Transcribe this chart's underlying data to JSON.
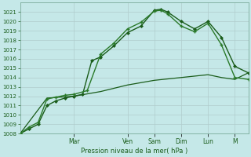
{
  "xlabel": "Pression niveau de la mer( hPa )",
  "bg_color": "#c5e8e8",
  "grid_color": "#b0cccc",
  "line_color_dark": "#1a5c1a",
  "line_color_mid": "#2a7a2a",
  "ylim": [
    1008,
    1022
  ],
  "ytick_min": 1008,
  "ytick_max": 1021,
  "day_labels": [
    "Mar",
    "Ven",
    "Sam",
    "Dim",
    "Lun",
    "M"
  ],
  "day_positions": [
    2.0,
    4.0,
    5.0,
    6.0,
    7.0,
    8.0
  ],
  "xlim": [
    0,
    8.5
  ],
  "line1_x": [
    0,
    0.33,
    0.67,
    1.0,
    1.33,
    1.67,
    2.0,
    2.33,
    2.67,
    3.0,
    3.5,
    4.0,
    4.5,
    5.0,
    5.25,
    5.5,
    6.0,
    6.5,
    7.0,
    7.5,
    8.0,
    8.5
  ],
  "line1_y": [
    1008.0,
    1008.5,
    1009.0,
    1011.0,
    1011.5,
    1011.8,
    1012.0,
    1012.2,
    1015.8,
    1016.2,
    1017.4,
    1018.8,
    1019.5,
    1021.2,
    1021.3,
    1021.0,
    1020.0,
    1019.2,
    1020.0,
    1018.3,
    1015.2,
    1014.5
  ],
  "line2_x": [
    0,
    0.33,
    0.67,
    1.0,
    1.33,
    1.67,
    2.0,
    2.5,
    3.0,
    3.5,
    4.0,
    4.5,
    5.0,
    5.25,
    5.5,
    6.0,
    6.5,
    7.0,
    7.5,
    8.0,
    8.5
  ],
  "line2_y": [
    1008.0,
    1008.7,
    1009.2,
    1011.7,
    1011.9,
    1012.1,
    1012.2,
    1012.6,
    1016.5,
    1017.7,
    1019.2,
    1019.9,
    1021.1,
    1021.2,
    1020.8,
    1019.5,
    1018.9,
    1019.8,
    1017.5,
    1014.0,
    1013.8
  ],
  "line3_x": [
    0,
    1.0,
    2.0,
    3.0,
    4.0,
    5.0,
    6.0,
    7.0,
    7.5,
    8.0,
    8.5
  ],
  "line3_y": [
    1008.0,
    1011.8,
    1012.0,
    1012.5,
    1013.2,
    1013.7,
    1014.0,
    1014.3,
    1014.0,
    1013.8,
    1014.5
  ]
}
